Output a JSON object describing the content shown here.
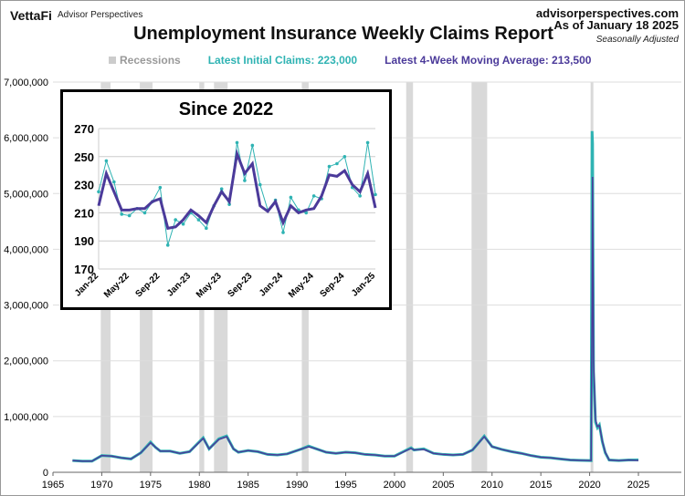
{
  "header": {
    "brand": "VettaFi",
    "brand_sub": "Advisor Perspectives",
    "site": "advisorperspectives.com",
    "as_of": "As of January 18 2025",
    "seasonal": "Seasonally Adjusted"
  },
  "chart_data": [
    {
      "type": "line",
      "title": "Unemployment Insurance Weekly Claims Report",
      "legend": {
        "recessions": "Recessions",
        "latest_initial": "Latest Initial Claims: 223,000",
        "latest_ma": "Latest 4-Week Moving Average: 213,500"
      },
      "colors": {
        "initial": "#2fb3b3",
        "ma": "#4b3a9a",
        "recession": "#d9d9d9"
      },
      "ylim": [
        0,
        7000000
      ],
      "yticks": [
        0,
        1000000,
        2000000,
        3000000,
        4000000,
        5000000,
        6000000,
        7000000
      ],
      "ytick_labels": [
        "0",
        "1,000,000",
        "2,000,000",
        "3,000,000",
        "4,000,000",
        "5,000,000",
        "6,000,000",
        "7,000,000"
      ],
      "xlim": [
        1965,
        2025
      ],
      "xticks": [
        1965,
        1970,
        1975,
        1980,
        1985,
        1990,
        1995,
        2000,
        2005,
        2010,
        2015,
        2020,
        2025
      ],
      "recessions": [
        [
          1969.9,
          1970.9
        ],
        [
          1973.9,
          1975.2
        ],
        [
          1980.0,
          1980.5
        ],
        [
          1981.5,
          1982.9
        ],
        [
          1990.5,
          1991.2
        ],
        [
          2001.2,
          2001.9
        ],
        [
          2007.9,
          2009.5
        ],
        [
          2020.1,
          2020.35
        ]
      ],
      "x": [
        1967,
        1968,
        1969,
        1970,
        1971,
        1972,
        1973,
        1974,
        1975,
        1975.5,
        1976,
        1977,
        1978,
        1979,
        1980.4,
        1981,
        1982,
        1982.8,
        1983.5,
        1984,
        1985,
        1986,
        1987,
        1988,
        1989,
        1990.5,
        1991.2,
        1992,
        1993,
        1994,
        1995,
        1996,
        1997,
        1998,
        1999,
        2000,
        2001.7,
        2002,
        2003,
        2004,
        2005,
        2006,
        2007,
        2008,
        2009.2,
        2010,
        2011,
        2012,
        2013,
        2014,
        2015,
        2016,
        2017,
        2018,
        2019,
        2020.15,
        2020.25,
        2020.3,
        2020.4,
        2020.6,
        2020.8,
        2021,
        2021.3,
        2021.6,
        2022,
        2023,
        2024,
        2025
      ],
      "series": [
        {
          "name": "Initial Claims",
          "values": [
            210000,
            200000,
            200000,
            300000,
            290000,
            260000,
            240000,
            350000,
            540000,
            450000,
            380000,
            380000,
            340000,
            370000,
            620000,
            420000,
            600000,
            650000,
            420000,
            360000,
            390000,
            370000,
            320000,
            310000,
            330000,
            420000,
            470000,
            420000,
            360000,
            340000,
            360000,
            350000,
            320000,
            310000,
            290000,
            290000,
            440000,
            400000,
            420000,
            340000,
            320000,
            310000,
            320000,
            400000,
            650000,
            460000,
            410000,
            370000,
            340000,
            300000,
            270000,
            260000,
            240000,
            220000,
            215000,
            210000,
            6120000,
            5900000,
            1800000,
            900000,
            800000,
            850000,
            550000,
            350000,
            220000,
            210000,
            220000,
            223000
          ]
        },
        {
          "name": "4-Week Moving Average",
          "values": [
            210000,
            200000,
            200000,
            300000,
            290000,
            260000,
            240000,
            350000,
            530000,
            450000,
            380000,
            380000,
            340000,
            370000,
            610000,
            420000,
            590000,
            640000,
            420000,
            360000,
            390000,
            370000,
            320000,
            310000,
            330000,
            420000,
            460000,
            420000,
            360000,
            340000,
            360000,
            350000,
            320000,
            310000,
            290000,
            290000,
            430000,
            400000,
            410000,
            340000,
            320000,
            310000,
            320000,
            400000,
            640000,
            460000,
            410000,
            370000,
            340000,
            300000,
            270000,
            260000,
            240000,
            220000,
            215000,
            210000,
            3000000,
            5300000,
            2000000,
            950000,
            820000,
            840000,
            560000,
            360000,
            220000,
            210000,
            220000,
            213500
          ]
        }
      ]
    },
    {
      "type": "line",
      "title": "Since 2022",
      "ylim": [
        170,
        270
      ],
      "yticks": [
        170,
        190,
        210,
        230,
        250,
        270
      ],
      "xtick_labels": [
        "Jan-22",
        "May-22",
        "Sep-22",
        "Jan-23",
        "May-23",
        "Sep-23",
        "Jan-24",
        "May-24",
        "Sep-24",
        "Jan-25"
      ],
      "series": [
        {
          "name": "Initial Claims",
          "values": [
            225,
            247,
            232,
            209,
            208,
            213,
            210,
            218,
            228,
            187,
            205,
            202,
            210,
            205,
            199,
            215,
            227,
            216,
            260,
            233,
            258,
            230,
            212,
            219,
            196,
            221,
            212,
            210,
            222,
            220,
            243,
            245,
            250,
            228,
            222,
            260,
            223
          ]
        },
        {
          "name": "4-Week Moving Average",
          "values": [
            215,
            238,
            225,
            212,
            212,
            213,
            213,
            218,
            220,
            199,
            200,
            205,
            212,
            208,
            203,
            215,
            225,
            218,
            252,
            238,
            245,
            215,
            211,
            218,
            203,
            215,
            210,
            212,
            213,
            222,
            237,
            236,
            240,
            230,
            225,
            238,
            213.5
          ]
        }
      ]
    }
  ]
}
